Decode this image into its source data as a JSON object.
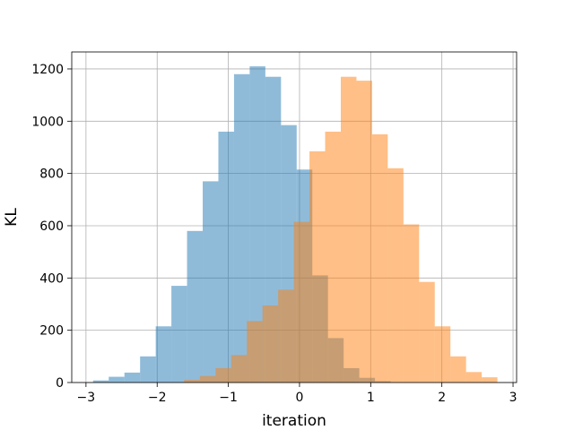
{
  "chart_data": {
    "type": "bar",
    "subtype": "overlapping-histogram",
    "title": "",
    "xlabel": "iteration",
    "ylabel": "KL",
    "xlim": [
      -3.2,
      3.05
    ],
    "ylim": [
      0,
      1265
    ],
    "xticks": [
      -3,
      -2,
      -1,
      0,
      1,
      2,
      3
    ],
    "xtick_labels": [
      "−3",
      "−2",
      "−1",
      "0",
      "1",
      "2",
      "3"
    ],
    "yticks": [
      0,
      200,
      400,
      600,
      800,
      1000,
      1200
    ],
    "ytick_labels": [
      "0",
      "200",
      "400",
      "600",
      "800",
      "1000",
      "1200"
    ],
    "grid": true,
    "legend": "none",
    "series": [
      {
        "color": "#1f77b4",
        "alpha": 0.5,
        "bin_edges": [
          -2.9,
          -2.68,
          -2.46,
          -2.24,
          -2.02,
          -1.8,
          -1.58,
          -1.36,
          -1.14,
          -0.92,
          -0.7,
          -0.48,
          -0.26,
          -0.04,
          0.18,
          0.4,
          0.62,
          0.84,
          1.06,
          1.28
        ],
        "counts": [
          8,
          22,
          38,
          100,
          215,
          370,
          580,
          770,
          960,
          1180,
          1210,
          1170,
          985,
          815,
          410,
          170,
          55,
          18,
          5
        ]
      },
      {
        "color": "#ff7f0e",
        "alpha": 0.5,
        "bin_edges": [
          -1.62,
          -1.4,
          -1.18,
          -0.96,
          -0.74,
          -0.52,
          -0.3,
          -0.08,
          0.14,
          0.36,
          0.58,
          0.8,
          1.02,
          1.24,
          1.46,
          1.68,
          1.9,
          2.12,
          2.34,
          2.56,
          2.78
        ],
        "counts": [
          10,
          25,
          55,
          105,
          235,
          295,
          355,
          615,
          885,
          960,
          1170,
          1155,
          950,
          820,
          605,
          385,
          215,
          100,
          40,
          20
        ]
      }
    ]
  }
}
